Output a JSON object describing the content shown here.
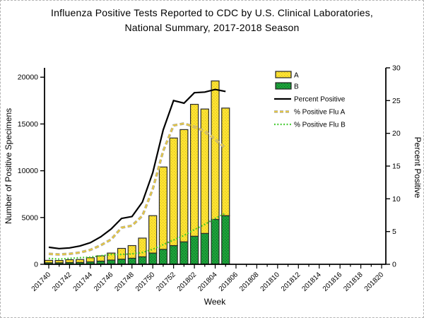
{
  "title": {
    "line1": "Influenza Positive Tests Reported to CDC by U.S. Clinical Laboratories,",
    "line2": "National Summary, 2017-2018 Season"
  },
  "axes": {
    "y_left_label": "Number of Positive Specimens",
    "y_right_label": "Percent Positive",
    "x_label": "Week",
    "y_left_ticks": [
      0,
      5000,
      10000,
      15000,
      20000
    ],
    "y_left_max": 21000,
    "y_right_ticks": [
      0,
      5,
      10,
      15,
      20,
      25,
      30
    ],
    "y_right_max": 30
  },
  "legend": {
    "items": [
      {
        "label": "A",
        "swatch": "yellow-box"
      },
      {
        "label": "B",
        "swatch": "green-box"
      },
      {
        "label": "Percent Positive",
        "swatch": "black-line"
      },
      {
        "label": "% Positive Flu A",
        "swatch": "yellow-dashed-line"
      },
      {
        "label": "% Positive Flu B",
        "swatch": "green-dotted-line"
      }
    ]
  },
  "colors": {
    "flu_a_fill": "#ffe431",
    "flu_a_dot": "#d8bf27",
    "flu_b_fill": "#1da13a",
    "flu_b_dot": "#0b6e24",
    "bar_border": "#2a2a2a",
    "percent_positive_line": "#000000",
    "pct_flu_a_line": "#e9c93d",
    "pct_flu_a_halo": "#a9a9a9",
    "pct_flu_b_line": "#3ec829",
    "axis": "#000000"
  },
  "chart_data": {
    "type": "bar",
    "title": "Influenza Positive Tests Reported to CDC by U.S. Clinical Laboratories, National Summary, 2017-2018 Season",
    "xlabel": "Week",
    "ylabel_left": "Number of Positive Specimens",
    "ylabel_right": "Percent Positive",
    "ylim_left": [
      0,
      21000
    ],
    "ylim_right": [
      0,
      30
    ],
    "grid": false,
    "legend_position": "upper-right-inside",
    "x_categories": [
      "201740",
      "201741",
      "201742",
      "201743",
      "201744",
      "201745",
      "201746",
      "201747",
      "201748",
      "201749",
      "201750",
      "201751",
      "201752",
      "201801",
      "201802",
      "201803",
      "201804",
      "201805",
      "201806",
      "201807",
      "201808",
      "201809",
      "201810",
      "201811",
      "201812",
      "201813",
      "201814",
      "201815",
      "201816",
      "201817",
      "201818",
      "201819",
      "201820"
    ],
    "x_label_every": 2,
    "bar_weeks": [
      "201740",
      "201741",
      "201742",
      "201743",
      "201744",
      "201745",
      "201746",
      "201747",
      "201748",
      "201749",
      "201750",
      "201751",
      "201752",
      "201801",
      "201802",
      "201803",
      "201804",
      "201805"
    ],
    "series": [
      {
        "name": "A",
        "kind": "bar-stack",
        "values": [
          260,
          250,
          300,
          310,
          440,
          560,
          750,
          1150,
          1350,
          2000,
          4000,
          8800,
          11500,
          12000,
          14100,
          13300,
          14800,
          11500
        ]
      },
      {
        "name": "B",
        "kind": "bar-stack",
        "values": [
          160,
          160,
          190,
          200,
          260,
          340,
          450,
          550,
          650,
          800,
          1200,
          1600,
          2000,
          2400,
          3000,
          3300,
          4800,
          5200
        ]
      },
      {
        "name": "Percent Positive",
        "kind": "line",
        "axis": "right",
        "values": [
          2.6,
          2.4,
          2.5,
          2.8,
          3.3,
          4.2,
          5.4,
          7.0,
          7.3,
          9.5,
          14.0,
          20.5,
          25.0,
          24.6,
          26.2,
          26.3,
          26.7,
          26.4
        ]
      },
      {
        "name": "% Positive Flu A",
        "kind": "line-dashed",
        "axis": "right",
        "values": [
          1.6,
          1.5,
          1.6,
          1.8,
          2.2,
          2.9,
          3.8,
          5.6,
          5.9,
          7.4,
          11.5,
          17.3,
          21.2,
          21.5,
          21.0,
          20.3,
          19.1,
          17.7
        ]
      },
      {
        "name": "% Positive Flu B",
        "kind": "line-dotted",
        "axis": "right",
        "values": [
          0.9,
          0.8,
          0.9,
          1.0,
          1.1,
          1.3,
          1.5,
          1.5,
          1.6,
          1.8,
          2.3,
          3.0,
          3.7,
          4.4,
          5.3,
          6.1,
          7.0,
          7.8
        ]
      }
    ]
  }
}
